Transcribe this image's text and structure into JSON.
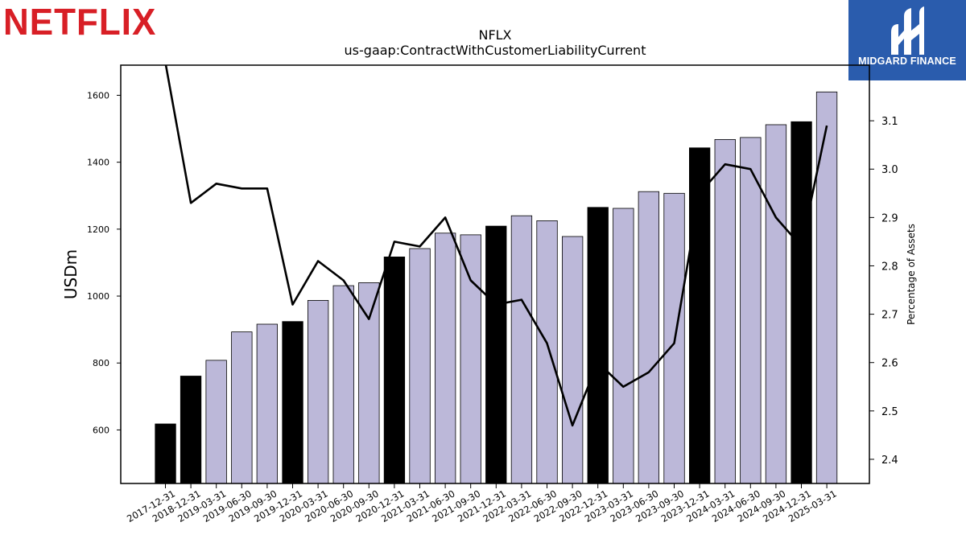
{
  "header": {
    "brand_logo_text": "NETFLIX",
    "corner_logo_text": "MIDGARD FINANCE",
    "corner_logo_icon": "midgard-mountain-icon"
  },
  "colors": {
    "bar_quarter": "#bcb8d9",
    "bar_year_end": "#000000",
    "line": "#000000",
    "netflix_red": "#d81f26",
    "corner_blue": "#2a5cad"
  },
  "chart_data": {
    "type": "bar",
    "title": "NFLX",
    "subtitle": "us-gaap:ContractWithCustomerLiabilityCurrent",
    "ylabel": "USDm",
    "y2label": "Percentage of Assets",
    "ylim": [
      440,
      1690
    ],
    "y2lim": [
      2.35,
      3.215
    ],
    "yticks": [
      600,
      800,
      1000,
      1200,
      1400,
      1600
    ],
    "y2ticks": [
      2.4,
      2.5,
      2.6,
      2.7,
      2.8,
      2.9,
      3.0,
      3.1
    ],
    "categories": [
      "2017-12-31",
      "2018-12-31",
      "2019-03-31",
      "2019-06-30",
      "2019-09-30",
      "2019-12-31",
      "2020-03-31",
      "2020-06-30",
      "2020-09-30",
      "2020-12-31",
      "2021-03-31",
      "2021-06-30",
      "2021-09-30",
      "2021-12-31",
      "2022-03-31",
      "2022-06-30",
      "2022-09-30",
      "2022-12-31",
      "2023-03-31",
      "2023-06-30",
      "2023-09-30",
      "2023-12-31",
      "2024-03-31",
      "2024-06-30",
      "2024-09-30",
      "2024-12-31",
      "2025-03-31"
    ],
    "series": [
      {
        "kind": "bar",
        "values": [
          618,
          761,
          808,
          893,
          916,
          924,
          987,
          1031,
          1040,
          1117,
          1142,
          1188,
          1183,
          1209,
          1240,
          1225,
          1178,
          1265,
          1262,
          1312,
          1307,
          1443,
          1468,
          1474,
          1512,
          1521,
          1610
        ],
        "year_end": [
          true,
          true,
          false,
          false,
          false,
          true,
          false,
          false,
          false,
          true,
          false,
          false,
          false,
          true,
          false,
          false,
          false,
          true,
          false,
          false,
          false,
          true,
          false,
          false,
          false,
          true,
          false
        ]
      },
      {
        "kind": "line",
        "axis": "right",
        "values": [
          3.22,
          2.93,
          2.97,
          2.96,
          2.96,
          2.72,
          2.81,
          2.77,
          2.69,
          2.85,
          2.84,
          2.9,
          2.77,
          2.72,
          2.73,
          2.64,
          2.47,
          2.6,
          2.55,
          2.58,
          2.64,
          2.95,
          3.01,
          3.0,
          2.9,
          2.84,
          3.09
        ]
      }
    ]
  }
}
